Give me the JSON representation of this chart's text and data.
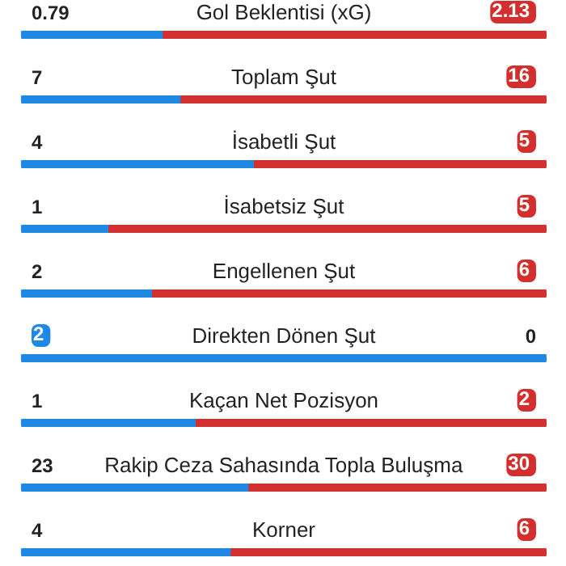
{
  "chart_data": {
    "type": "other",
    "categories": [
      "Gol Beklentisi (xG)",
      "Toplam Şut",
      "İsabetli Şut",
      "İsabetsiz Şut",
      "Engellenen Şut",
      "Direkten Dönen Şut",
      "Kaçan Net Pozisyon",
      "Rakip Ceza Sahasında Topla Buluşma",
      "Korner"
    ],
    "series": [
      {
        "color": "#1e88e5",
        "values": [
          0.79,
          7,
          4,
          1,
          2,
          2,
          1,
          23,
          4
        ],
        "value_labels": [
          "0.79",
          "7",
          "4",
          "1",
          "2",
          "2",
          "1",
          "23",
          "4"
        ]
      },
      {
        "color": "#d32f2f",
        "values": [
          2.13,
          16,
          5,
          5,
          6,
          0,
          2,
          30,
          6
        ],
        "value_labels": [
          "2.13",
          "16",
          "5",
          "5",
          "6",
          "0",
          "2",
          "30",
          "6"
        ]
      }
    ]
  }
}
